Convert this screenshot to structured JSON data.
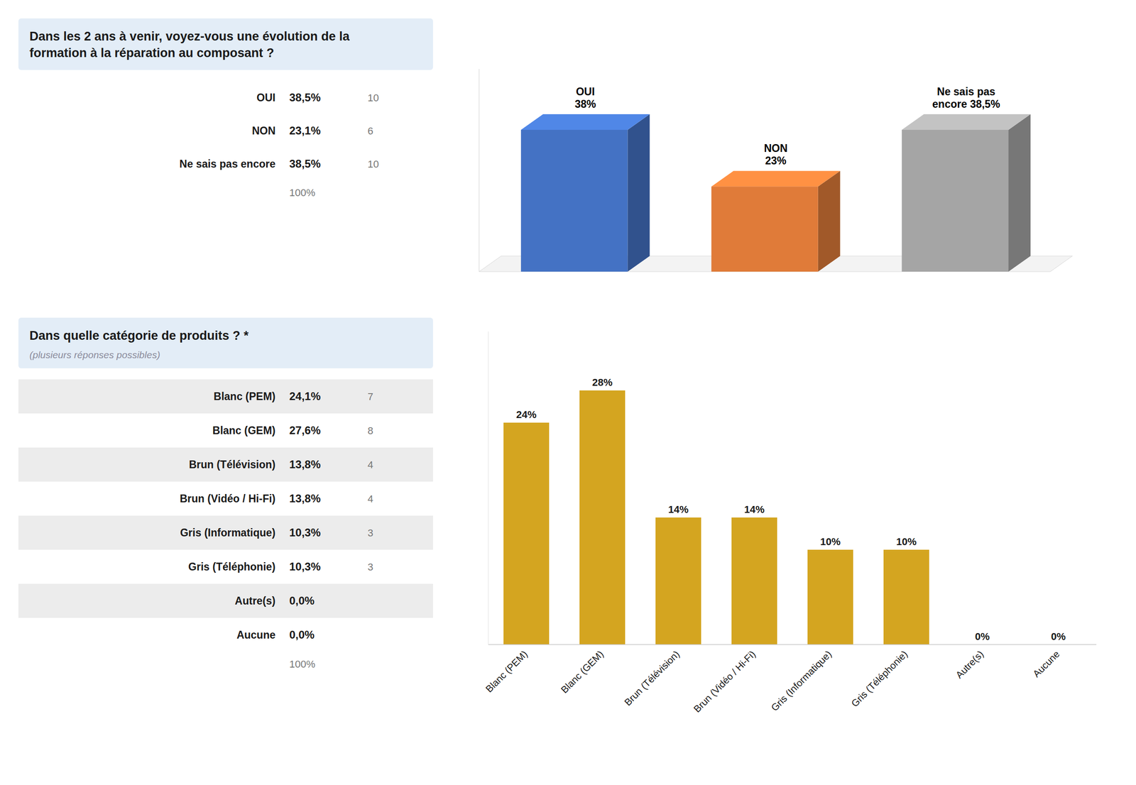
{
  "chart_data": [
    {
      "type": "table",
      "title": "Dans les 2 ans à venir, voyez-vous une évolution de la\nformation à la réparation au composant ?",
      "categories": [
        "OUI",
        "NON",
        "Ne sais pas encore"
      ],
      "values": [
        38.5,
        23.1,
        38.5
      ],
      "value_labels": [
        "38,5%",
        "23,1%",
        "38,5%"
      ],
      "counts": [
        10,
        6,
        10
      ],
      "annotations": [
        "100%"
      ]
    },
    {
      "type": "bar3d",
      "values": [
        38.5,
        23.1,
        38.5
      ],
      "value_labels": [
        "OUI\n38%",
        "NON\n23%",
        "Ne sais pas\nencore 38,5%"
      ],
      "colors": [
        "#4472C4",
        "#E07B39",
        "#A5A5A5"
      ],
      "ylim": [
        0,
        55
      ],
      "tick_labels": false,
      "grid": false
    },
    {
      "type": "table",
      "title": "Dans quelle catégorie de produits ? *",
      "subtitle": "(plusieurs réponses possibles)",
      "categories": [
        "Blanc (PEM)",
        "Blanc (GEM)",
        "Brun (Télévision)",
        "Brun (Vidéo / Hi-Fi)",
        "Gris (Informatique)",
        "Gris (Téléphonie)",
        "Autre(s)",
        "Aucune"
      ],
      "values": [
        24.1,
        27.6,
        13.8,
        13.8,
        10.3,
        10.3,
        0.0,
        0.0
      ],
      "value_labels": [
        "24,1%",
        "27,6%",
        "13,8%",
        "13,8%",
        "10,3%",
        "10,3%",
        "0,0%",
        "0,0%"
      ],
      "counts": [
        7,
        8,
        4,
        4,
        3,
        3,
        null,
        null
      ],
      "annotations": [
        "100%"
      ]
    },
    {
      "type": "bar",
      "categories": [
        "Blanc (PEM)",
        "Blanc (GEM)",
        "Brun (Télévision)",
        "Brun (Vidéo / Hi-Fi)",
        "Gris (Informatique)",
        "Gris (Téléphonie)",
        "Autre(s)",
        "Aucune"
      ],
      "values": [
        24.1,
        27.6,
        13.8,
        13.8,
        10.3,
        10.3,
        0.0,
        0.0
      ],
      "value_labels": [
        "24%",
        "28%",
        "14%",
        "14%",
        "10%",
        "10%",
        "0%",
        "0%"
      ],
      "color": "#D4A520",
      "ylim": [
        0,
        34
      ],
      "tick_labels": "x",
      "grid": false
    }
  ]
}
